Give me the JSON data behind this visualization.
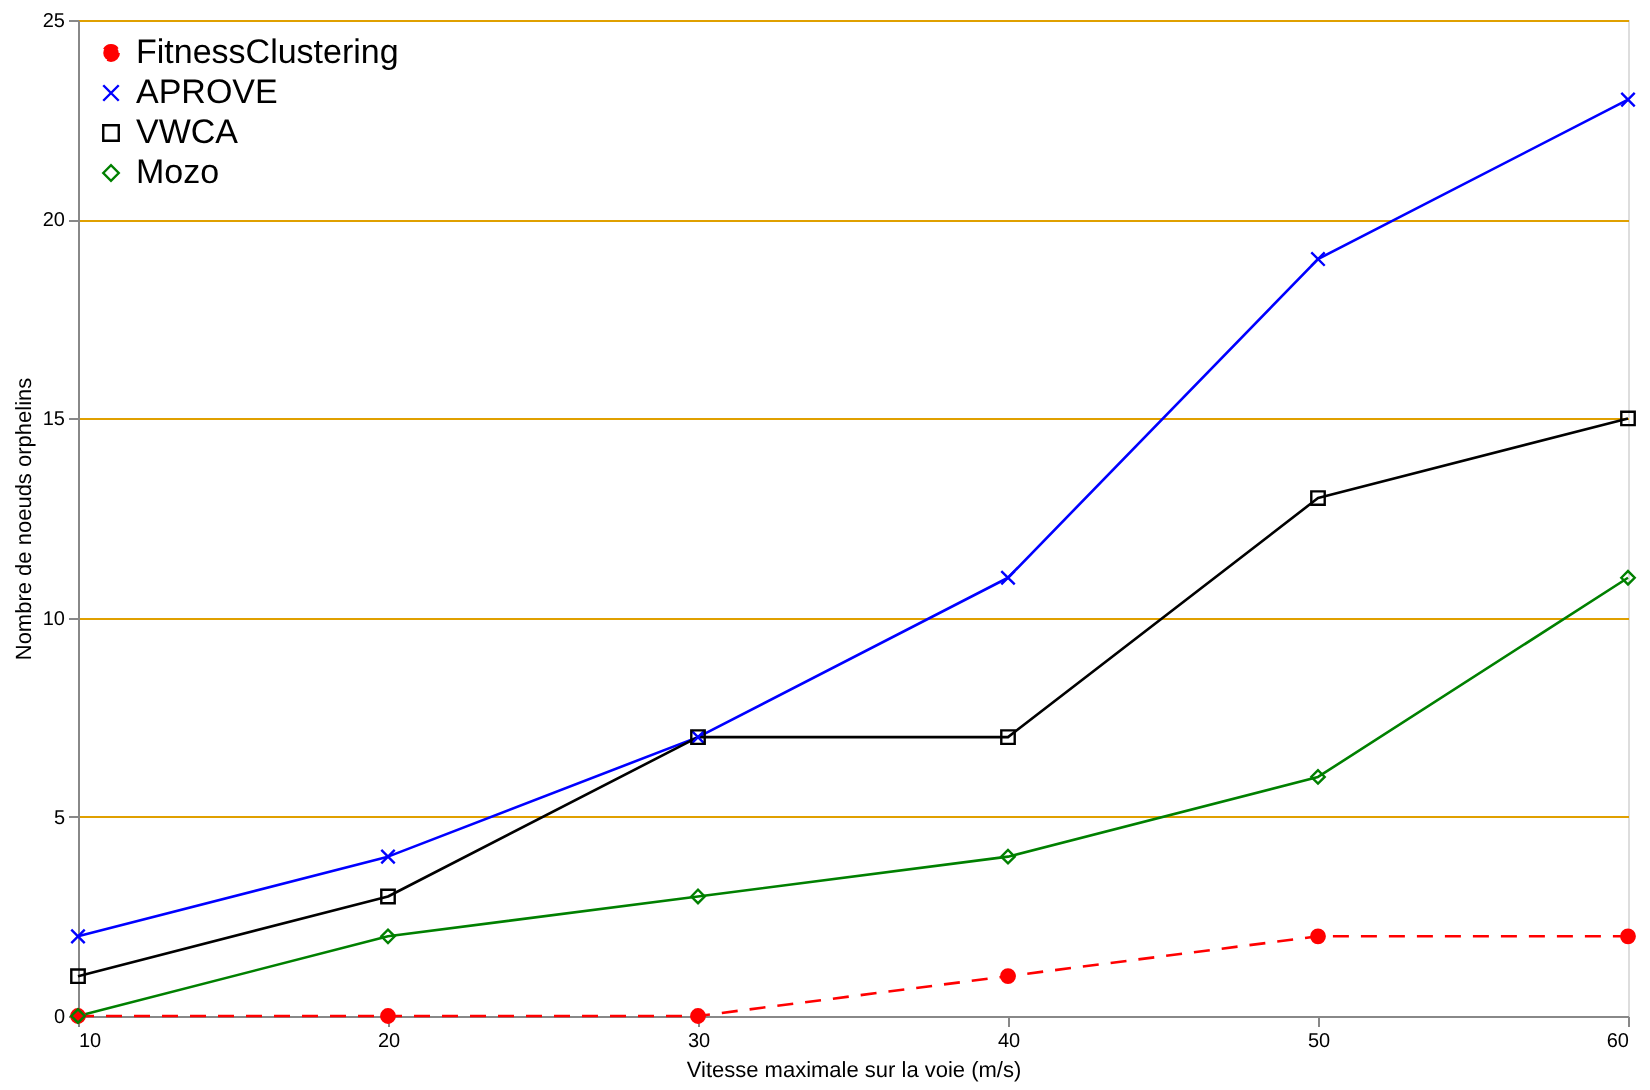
{
  "chart_data": {
    "type": "line",
    "xlabel": "Vitesse maximale sur la voie (m/s)",
    "ylabel": "Nombre de noeuds orphelins",
    "x": [
      10,
      20,
      30,
      40,
      50,
      60
    ],
    "series": [
      {
        "name": "FitnessClustering",
        "color": "#ff0000",
        "values": [
          0,
          0,
          0,
          1,
          2,
          2
        ],
        "marker": "circle",
        "line_style": "dashed"
      },
      {
        "name": "APROVE",
        "color": "#0000ff",
        "values": [
          2,
          4,
          7,
          11,
          19,
          23
        ],
        "marker": "cross",
        "line_style": "solid"
      },
      {
        "name": "VWCA",
        "color": "#000000",
        "values": [
          1,
          3,
          7,
          7,
          13,
          15
        ],
        "marker": "square",
        "line_style": "solid"
      },
      {
        "name": "Mozo",
        "color": "#008000",
        "values": [
          0,
          2,
          3,
          4,
          6,
          11
        ],
        "marker": "diamond",
        "line_style": "solid"
      }
    ],
    "xlim": [
      10,
      60
    ],
    "xticks": [
      10,
      20,
      30,
      40,
      50,
      60
    ],
    "ylim": [
      0,
      25
    ],
    "yticks": [
      0,
      5,
      10,
      15,
      20,
      25
    ],
    "grid": "y",
    "legend": "top left"
  }
}
